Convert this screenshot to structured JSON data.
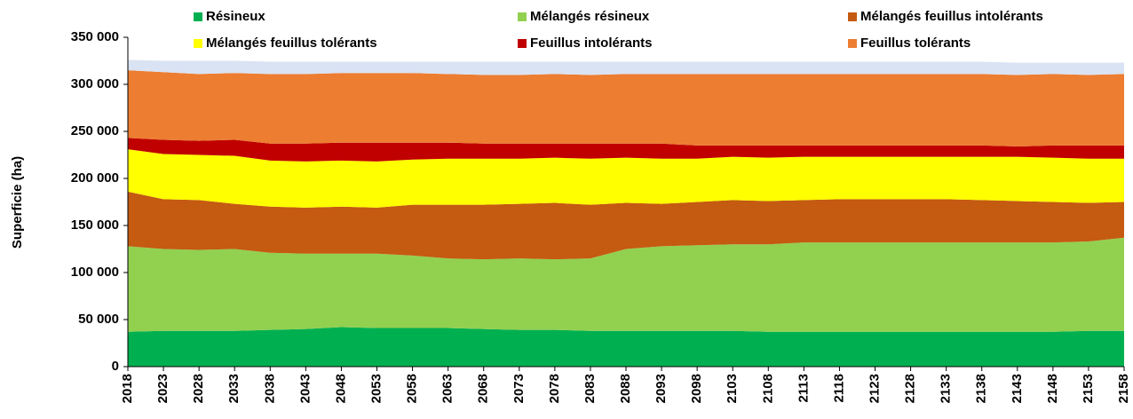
{
  "chart_data": {
    "type": "stacked_area",
    "y_label": "Superficie (ha)",
    "x": [
      2018,
      2023,
      2028,
      2033,
      2038,
      2043,
      2048,
      2053,
      2058,
      2063,
      2068,
      2073,
      2078,
      2083,
      2088,
      2093,
      2098,
      2103,
      2108,
      2113,
      2118,
      2123,
      2128,
      2133,
      2138,
      2143,
      2148,
      2153,
      2158
    ],
    "xlim": [
      2018,
      2158
    ],
    "ylim": [
      0,
      350000
    ],
    "yticks": [
      0,
      {
        "value": 50000,
        "label": "50 000"
      },
      {
        "value": 100000,
        "label": "100 000"
      },
      {
        "value": 150000,
        "label": "150 000"
      },
      {
        "value": 200000,
        "label": "200 000"
      },
      {
        "value": 250000,
        "label": "250 000"
      },
      {
        "value": 300000,
        "label": "300 000"
      },
      {
        "value": 350000,
        "label": "350 000"
      }
    ],
    "legend": "top",
    "series": [
      {
        "name": "Résineux",
        "color": "#00b050",
        "values": [
          37000,
          38000,
          38000,
          38000,
          39000,
          40000,
          42000,
          41000,
          41000,
          41000,
          40000,
          39000,
          39000,
          38000,
          38000,
          38000,
          38000,
          38000,
          37000,
          37000,
          37000,
          37000,
          37000,
          37000,
          37000,
          37000,
          37000,
          38000,
          38000
        ]
      },
      {
        "name": "Mélangés résineux",
        "color": "#92d050",
        "values": [
          91000,
          87000,
          86000,
          87000,
          82000,
          80000,
          78000,
          79000,
          77000,
          74000,
          74000,
          76000,
          75000,
          77000,
          87000,
          90000,
          91000,
          92000,
          93000,
          95000,
          95000,
          95000,
          95000,
          95000,
          95000,
          95000,
          95000,
          95000,
          99000
        ]
      },
      {
        "name": "Mélangés feuillus intolérants",
        "color": "#c55a11",
        "values": [
          58000,
          53000,
          53000,
          48000,
          49000,
          49000,
          50000,
          49000,
          54000,
          57000,
          58000,
          58000,
          60000,
          57000,
          49000,
          45000,
          46000,
          47000,
          46000,
          45000,
          46000,
          46000,
          46000,
          46000,
          45000,
          44000,
          43000,
          41000,
          38000
        ]
      },
      {
        "name": "Mélangés feuillus tolérants",
        "color": "#ffff00",
        "values": [
          45000,
          48000,
          48000,
          51000,
          49000,
          49000,
          49000,
          49000,
          48000,
          49000,
          49000,
          48000,
          48000,
          49000,
          48000,
          48000,
          46000,
          46000,
          46000,
          46000,
          45000,
          45000,
          45000,
          45000,
          46000,
          47000,
          47000,
          47000,
          46000
        ]
      },
      {
        "name": "Feuillus intolérants",
        "color": "#c00000",
        "values": [
          12000,
          15000,
          15000,
          17000,
          18000,
          19000,
          19000,
          20000,
          18000,
          17000,
          16000,
          16000,
          15000,
          16000,
          15000,
          16000,
          14000,
          12000,
          13000,
          12000,
          12000,
          12000,
          12000,
          12000,
          12000,
          11000,
          13000,
          14000,
          14000
        ]
      },
      {
        "name": "Feuillus tolérants",
        "color": "#ed7d31",
        "values": [
          72000,
          72000,
          71000,
          71000,
          74000,
          74000,
          74000,
          74000,
          74000,
          73000,
          73000,
          73000,
          74000,
          73000,
          74000,
          74000,
          76000,
          76000,
          76000,
          76000,
          76000,
          76000,
          76000,
          76000,
          76000,
          76000,
          76000,
          75000,
          76000
        ]
      },
      {
        "color": "#dae3f3",
        "values": [
          11000,
          12000,
          14000,
          13000,
          13000,
          13000,
          12000,
          12000,
          12000,
          13000,
          14000,
          14000,
          13000,
          14000,
          13000,
          13000,
          13000,
          13000,
          13000,
          13000,
          13000,
          13000,
          13000,
          13000,
          13000,
          13000,
          12000,
          13000,
          12000
        ]
      }
    ]
  }
}
